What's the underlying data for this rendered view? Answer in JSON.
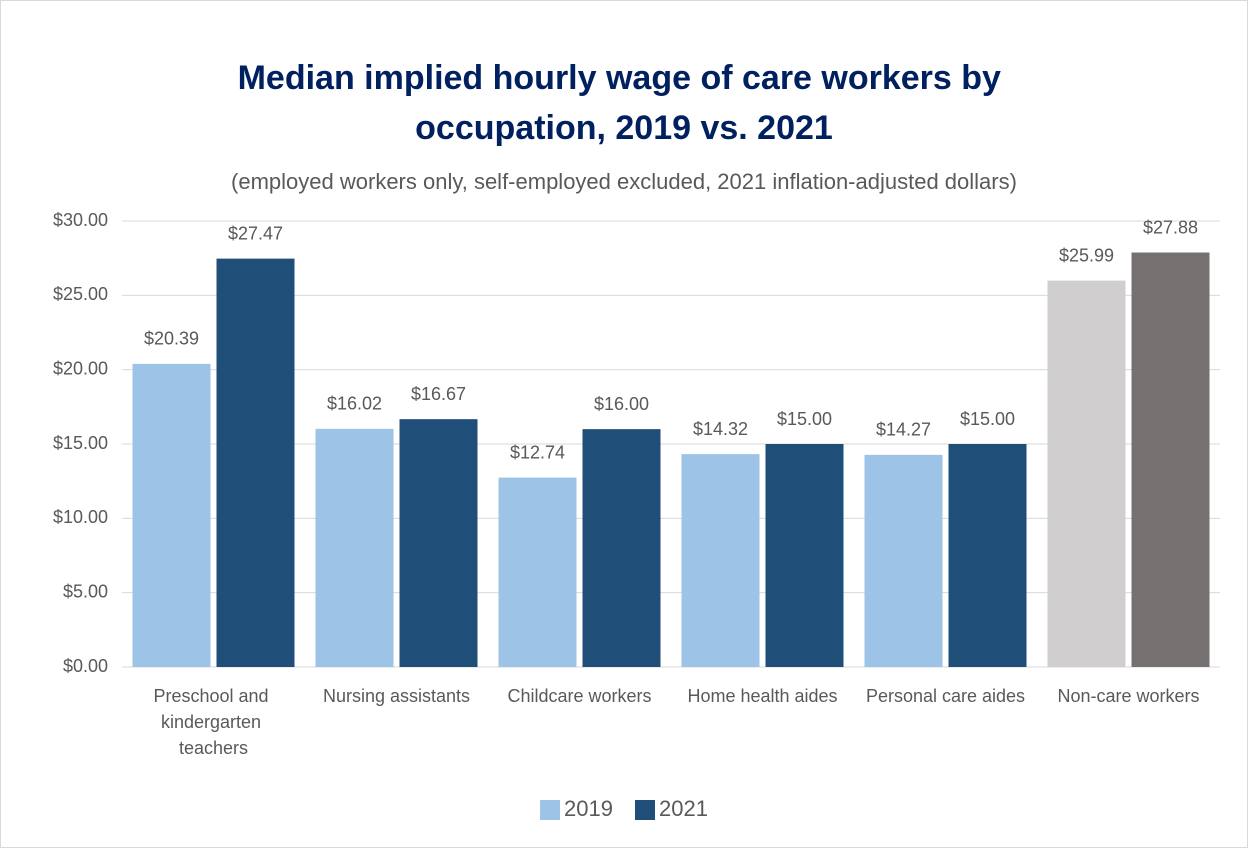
{
  "chart_data": {
    "type": "bar",
    "title": "Median implied hourly wage of care workers by occupation, 2019 vs. 2021",
    "subtitle": "(employed workers only, self-employed excluded, 2021 inflation-adjusted dollars)",
    "categories": [
      "Preschool and kindergarten teachers",
      "Nursing assistants",
      "Childcare workers",
      "Home health aides",
      "Personal care aides",
      "Non-care workers"
    ],
    "series": [
      {
        "name": "2019",
        "color": "#9dc3e6",
        "colors": [
          "#9dc3e6",
          "#9dc3e6",
          "#9dc3e6",
          "#9dc3e6",
          "#9dc3e6",
          "#d0cece"
        ],
        "values": [
          20.39,
          16.02,
          12.74,
          14.32,
          14.27,
          25.99
        ],
        "value_labels": [
          "$20.39",
          "$16.02",
          "$12.74",
          "$14.32",
          "$14.27",
          "$25.99"
        ]
      },
      {
        "name": "2021",
        "color": "#1f4e79",
        "colors": [
          "#1f4e79",
          "#1f4e79",
          "#1f4e79",
          "#1f4e79",
          "#1f4e79",
          "#767171"
        ],
        "values": [
          27.47,
          16.67,
          16.0,
          15.0,
          15.0,
          27.88
        ],
        "value_labels": [
          "$27.47",
          "$16.67",
          "$16.00",
          "$15.00",
          "$15.00",
          "$27.88"
        ]
      }
    ],
    "ylim": [
      0,
      30
    ],
    "yticks": [
      {
        "value": 0,
        "label": "$0.00"
      },
      {
        "value": 5,
        "label": "$5.00"
      },
      {
        "value": 10,
        "label": "$10.00"
      },
      {
        "value": 15,
        "label": "$15.00"
      },
      {
        "value": 20,
        "label": "$20.00"
      },
      {
        "value": 25,
        "label": "$25.00"
      },
      {
        "value": 30,
        "label": "$30.00"
      }
    ],
    "grid": true,
    "legend": "bottom"
  }
}
